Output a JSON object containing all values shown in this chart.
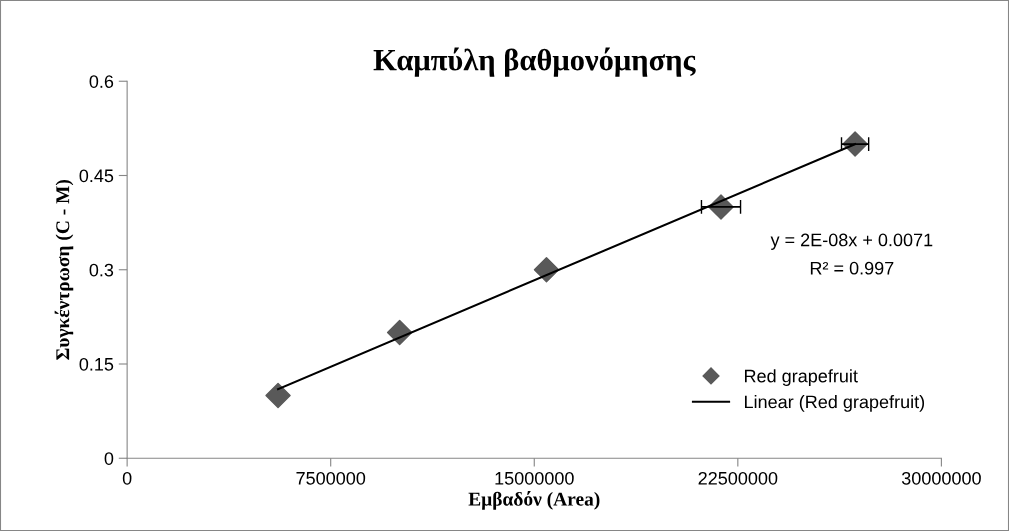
{
  "chart_data": {
    "type": "scatter",
    "title": "Καμπύλη βαθμονόμησης",
    "xlabel": "Εμβαδόν (Area)",
    "ylabel": "Συγκέντρωση (C - M)",
    "series": [
      {
        "name": "Red grapefruit",
        "color": "#595959",
        "marker": "diamond",
        "x": [
          5560000,
          10040000,
          15450000,
          21880000,
          26820000
        ],
        "values": [
          0.1,
          0.2,
          0.3,
          0.4,
          0.5
        ],
        "xerrors": [
          null,
          null,
          null,
          720000,
          500000
        ]
      },
      {
        "name": "Linear (Red grapefruit)",
        "type": "line",
        "color": "#000000",
        "marker": "none",
        "line_style": "solid",
        "x": [
          5560000,
          26820000
        ],
        "values": [
          0.11,
          0.5
        ]
      }
    ],
    "annotations": [
      "y = 2E-08x + 0.0071",
      "R² = 0.997"
    ],
    "xlim": [
      0,
      30000000
    ],
    "xticks": [
      0,
      7500000,
      15000000,
      22500000,
      30000000
    ],
    "ylim": [
      0,
      0.6
    ],
    "yticks": [
      0,
      0.15,
      0.3,
      0.45,
      0.6
    ],
    "grid": false,
    "legend": "bottom right"
  }
}
